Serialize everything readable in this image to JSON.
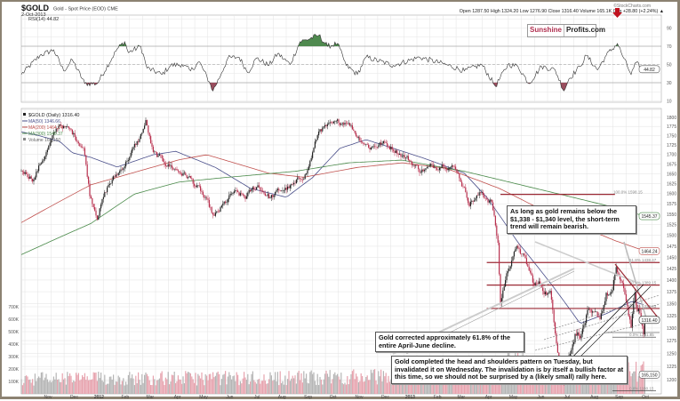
{
  "header": {
    "symbol": "$GOLD",
    "name": "Gold - Spot Price (EOD) CME",
    "date": "2-Oct-2013",
    "credit": "©StockCharts.com",
    "ohlc": "Open 1287.50  High 1324.20  Low 1276.90  Close 1316.40  Volume 165.1K  Chg +28.80 (+2.24%) ▲"
  },
  "logo": {
    "part1": "Sunshine",
    "part2": "Profits.com"
  },
  "annotations": {
    "bearish": "As long as gold remains below the $1,338 - $1,340 level, the short-term trend will remain bearish.",
    "fib": "Gold corrected approximately 61.8% of the entire April-June decline.",
    "hs": "Gold completed the head and shoulders pattern on Tuesday, but invalidated it on Wednesday. The invalidation is by itself a bullish factor at this time, so we should not be surprised by a (likely small) rally here."
  },
  "colors": {
    "up": "#222222",
    "down": "#b8304e",
    "ma50": "#4a4f8a",
    "ma200": "#c0504d",
    "ma300": "#4a8a4a",
    "fib": "#9b2a35",
    "rsi_over": "#4f8a4f",
    "rsi_under": "#9a4e5e",
    "vol_down": "#e7a3ae",
    "vol_up": "#b5b5b5"
  },
  "chart_data": {
    "type": "candlestick",
    "title": "$GOLD (Daily) 1316.40",
    "x_unit": "trading days since 3-Oct-2011",
    "x_ticks": [
      {
        "label": "Nov",
        "day": 20
      },
      {
        "label": "Dec",
        "day": 41
      },
      {
        "label": "2012",
        "day": 61,
        "bold": true
      },
      {
        "label": "Feb",
        "day": 82
      },
      {
        "label": "Mar",
        "day": 102
      },
      {
        "label": "Apr",
        "day": 124
      },
      {
        "label": "May",
        "day": 145
      },
      {
        "label": "Jun",
        "day": 166
      },
      {
        "label": "Jul",
        "day": 188
      },
      {
        "label": "Aug",
        "day": 208
      },
      {
        "label": "Sep",
        "day": 229
      },
      {
        "label": "Oct",
        "day": 249
      },
      {
        "label": "Nov",
        "day": 270
      },
      {
        "label": "Dec",
        "day": 291
      },
      {
        "label": "2013",
        "day": 311,
        "bold": true
      },
      {
        "label": "Feb",
        "day": 333
      },
      {
        "label": "Mar",
        "day": 352
      },
      {
        "label": "Apr",
        "day": 374
      },
      {
        "label": "May",
        "day": 394
      },
      {
        "label": "Jun",
        "day": 416
      },
      {
        "label": "Jul",
        "day": 437
      },
      {
        "label": "Aug",
        "day": 459
      },
      {
        "label": "Sep",
        "day": 479
      },
      {
        "label": "Oct",
        "day": 500
      }
    ],
    "price_scale": "log",
    "ylim": [
      1180,
      1820
    ],
    "y_ticks": [
      1800,
      1775,
      1750,
      1725,
      1700,
      1675,
      1650,
      1625,
      1600,
      1575,
      1550,
      1525,
      1500,
      1475,
      1450,
      1425,
      1400,
      1375,
      1350,
      1325,
      1300,
      1275,
      1250,
      1225,
      1200
    ],
    "close_keypoints": [
      [
        0,
        1660
      ],
      [
        10,
        1640
      ],
      [
        22,
        1720
      ],
      [
        31,
        1783
      ],
      [
        40,
        1760
      ],
      [
        50,
        1720
      ],
      [
        55,
        1600
      ],
      [
        61,
        1550
      ],
      [
        70,
        1620
      ],
      [
        80,
        1660
      ],
      [
        95,
        1740
      ],
      [
        100,
        1788
      ],
      [
        106,
        1700
      ],
      [
        115,
        1680
      ],
      [
        125,
        1660
      ],
      [
        135,
        1640
      ],
      [
        145,
        1600
      ],
      [
        155,
        1540
      ],
      [
        160,
        1560
      ],
      [
        170,
        1600
      ],
      [
        180,
        1590
      ],
      [
        190,
        1620
      ],
      [
        200,
        1590
      ],
      [
        210,
        1610
      ],
      [
        220,
        1620
      ],
      [
        230,
        1660
      ],
      [
        240,
        1770
      ],
      [
        250,
        1775
      ],
      [
        262,
        1793
      ],
      [
        270,
        1750
      ],
      [
        280,
        1720
      ],
      [
        290,
        1730
      ],
      [
        300,
        1715
      ],
      [
        310,
        1690
      ],
      [
        320,
        1660
      ],
      [
        330,
        1665
      ],
      [
        340,
        1680
      ],
      [
        350,
        1660
      ],
      [
        360,
        1580
      ],
      [
        370,
        1600
      ],
      [
        378,
        1580
      ],
      [
        383,
        1480
      ],
      [
        385,
        1350
      ],
      [
        388,
        1390
      ],
      [
        395,
        1460
      ],
      [
        400,
        1470
      ],
      [
        405,
        1440
      ],
      [
        412,
        1390
      ],
      [
        416,
        1390
      ],
      [
        420,
        1380
      ],
      [
        425,
        1370
      ],
      [
        430,
        1280
      ],
      [
        433,
        1230
      ],
      [
        436,
        1200
      ],
      [
        440,
        1250
      ],
      [
        445,
        1290
      ],
      [
        450,
        1290
      ],
      [
        455,
        1330
      ],
      [
        458,
        1320
      ],
      [
        465,
        1320
      ],
      [
        470,
        1370
      ],
      [
        475,
        1370
      ],
      [
        478,
        1425
      ],
      [
        482,
        1390
      ],
      [
        485,
        1370
      ],
      [
        488,
        1330
      ],
      [
        490,
        1305
      ],
      [
        493,
        1365
      ],
      [
        495,
        1330
      ],
      [
        497,
        1330
      ],
      [
        500,
        1287.5
      ],
      [
        501,
        1316.4
      ]
    ],
    "last": {
      "close": 1316.4,
      "volume_label": "165,150"
    },
    "series": [
      {
        "name": "MA(50) 1346.66",
        "badge": "1346.66",
        "keypoints": [
          [
            0,
            1760
          ],
          [
            13,
            1751
          ],
          [
            31,
            1734
          ],
          [
            41,
            1704
          ],
          [
            56,
            1692
          ],
          [
            77,
            1667
          ],
          [
            106,
            1699
          ],
          [
            124,
            1708
          ],
          [
            156,
            1666
          ],
          [
            184,
            1613
          ],
          [
            213,
            1591
          ],
          [
            234,
            1640
          ],
          [
            256,
            1716
          ],
          [
            277,
            1739
          ],
          [
            299,
            1716
          ],
          [
            327,
            1686
          ],
          [
            356,
            1651
          ],
          [
            374,
            1591
          ],
          [
            399,
            1484
          ],
          [
            427,
            1387
          ],
          [
            449,
            1309
          ],
          [
            470,
            1329
          ],
          [
            491,
            1355
          ],
          [
            501,
            1346.66
          ]
        ]
      },
      {
        "name": "MA(200) 1464.24",
        "badge": "1464.24",
        "keypoints": [
          [
            0,
            1530
          ],
          [
            56,
            1622
          ],
          [
            127,
            1686
          ],
          [
            149,
            1699
          ],
          [
            199,
            1651
          ],
          [
            227,
            1641
          ],
          [
            270,
            1666
          ],
          [
            306,
            1678
          ],
          [
            341,
            1664
          ],
          [
            384,
            1613
          ],
          [
            427,
            1547
          ],
          [
            477,
            1488
          ],
          [
            501,
            1464.24
          ]
        ]
      },
      {
        "name": "MA(300) 1545.37",
        "badge": "1545.37",
        "keypoints": [
          [
            0,
            1456
          ],
          [
            56,
            1528
          ],
          [
            91,
            1599
          ],
          [
            127,
            1629
          ],
          [
            163,
            1640
          ],
          [
            220,
            1656
          ],
          [
            263,
            1678
          ],
          [
            306,
            1685
          ],
          [
            356,
            1656
          ],
          [
            413,
            1613
          ],
          [
            470,
            1571
          ],
          [
            501,
            1545.37
          ]
        ]
      }
    ],
    "volume": {
      "name": "Volume 165,150",
      "ticks": [
        "700K",
        "600K",
        "500K",
        "400K",
        "300K",
        "200K",
        "100K"
      ],
      "tick_values": [
        700,
        600,
        500,
        400,
        300,
        200,
        100
      ],
      "unit": "K",
      "base_keypoints": [
        [
          0,
          120
        ],
        [
          200,
          125
        ],
        [
          380,
          145
        ],
        [
          390,
          260
        ],
        [
          420,
          200
        ],
        [
          501,
          175
        ]
      ]
    },
    "rsi": {
      "label": "RSI(14) 44.82",
      "value": 44.82,
      "badge": "44.82",
      "ylim": [
        0,
        100
      ],
      "ticks": [
        90,
        70,
        50,
        30,
        10
      ],
      "keypoints": [
        [
          0,
          39
        ],
        [
          15,
          60
        ],
        [
          26,
          66
        ],
        [
          34,
          43
        ],
        [
          41,
          55
        ],
        [
          51,
          29
        ],
        [
          61,
          29
        ],
        [
          77,
          67
        ],
        [
          83,
          75
        ],
        [
          86,
          63
        ],
        [
          96,
          70
        ],
        [
          101,
          46
        ],
        [
          113,
          39
        ],
        [
          120,
          49
        ],
        [
          129,
          50
        ],
        [
          136,
          43
        ],
        [
          143,
          53
        ],
        [
          151,
          31
        ],
        [
          154,
          21
        ],
        [
          161,
          41
        ],
        [
          166,
          57
        ],
        [
          175,
          58
        ],
        [
          182,
          41
        ],
        [
          189,
          57
        ],
        [
          199,
          49
        ],
        [
          206,
          62
        ],
        [
          216,
          50
        ],
        [
          224,
          75
        ],
        [
          229,
          77
        ],
        [
          239,
          82
        ],
        [
          246,
          70
        ],
        [
          254,
          73
        ],
        [
          261,
          49
        ],
        [
          270,
          39
        ],
        [
          277,
          58
        ],
        [
          299,
          49
        ],
        [
          320,
          58
        ],
        [
          341,
          50
        ],
        [
          356,
          43
        ],
        [
          370,
          50
        ],
        [
          381,
          26
        ],
        [
          391,
          50
        ],
        [
          399,
          48
        ],
        [
          408,
          29
        ],
        [
          418,
          48
        ],
        [
          429,
          44
        ],
        [
          436,
          21
        ],
        [
          440,
          34
        ],
        [
          449,
          48
        ],
        [
          454,
          60
        ],
        [
          463,
          44
        ],
        [
          470,
          60
        ],
        [
          479,
          73
        ],
        [
          484,
          57
        ],
        [
          490,
          39
        ],
        [
          494,
          52
        ],
        [
          499,
          44
        ],
        [
          501,
          44.82
        ]
      ]
    },
    "fibonacci": [
      {
        "label": "100.0% 1598.15",
        "price": 1598.15,
        "from_day": 385,
        "to_day": 477
      },
      {
        "label": "61.8% 1438.47",
        "price": 1438.47,
        "from_day": 374,
        "to_day": 513
      },
      {
        "label": "50.0% 1389.15",
        "price": 1389.15,
        "from_day": 374,
        "to_day": 513
      },
      {
        "label": "38.2% 1339.83",
        "price": 1339.83,
        "from_day": 374,
        "to_day": 513
      },
      {
        "label": "0.0% 1281.85",
        "price": 1281.85,
        "from_day": 475,
        "to_day": 510
      },
      {
        "label": "0.0% 1180.15",
        "price": 1180.15,
        "from_day": 475,
        "to_day": 510
      }
    ]
  }
}
